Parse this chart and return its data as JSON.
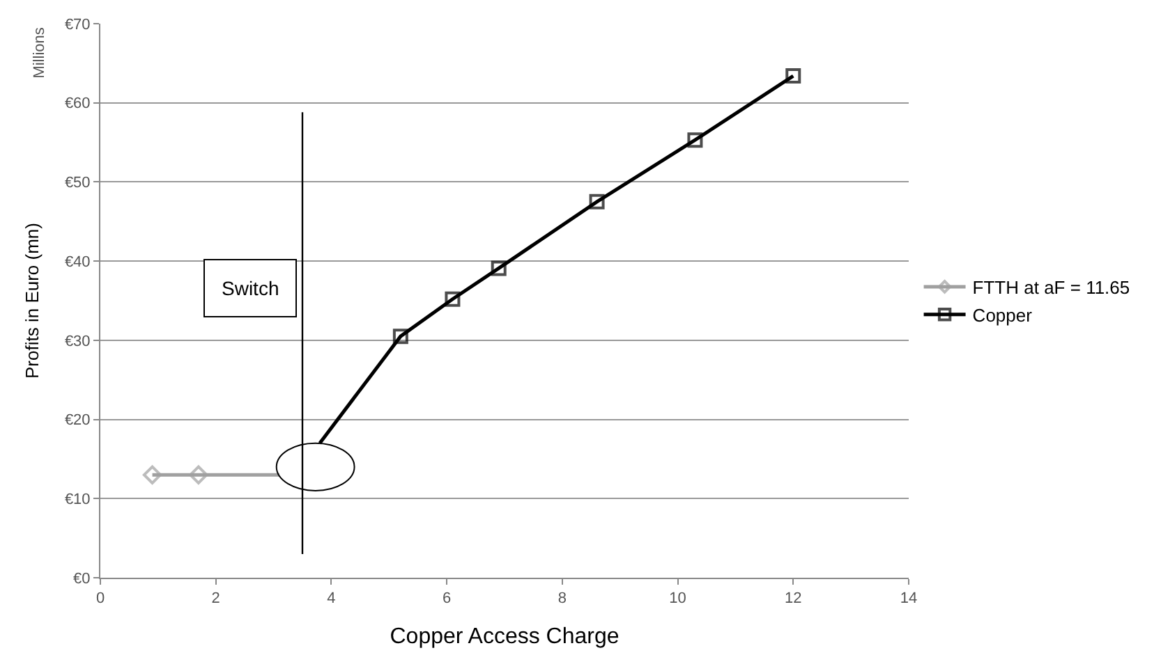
{
  "chart_data": {
    "type": "line",
    "xlabel": "Copper Access Charge",
    "ylabel": "Profits in Euro (mn)",
    "annotations": [
      "Millions"
    ],
    "xlim": [
      0,
      14
    ],
    "xticks": [
      0,
      2,
      4,
      6,
      8,
      10,
      12,
      14
    ],
    "ylim": [
      0,
      70
    ],
    "yticks": [
      {
        "value": 0,
        "label": "€0"
      },
      {
        "value": 10,
        "label": "€10"
      },
      {
        "value": 20,
        "label": "€20"
      },
      {
        "value": 30,
        "label": "€30"
      },
      {
        "value": 40,
        "label": "€40"
      },
      {
        "value": 50,
        "label": "€50"
      },
      {
        "value": 60,
        "label": "€60"
      },
      {
        "value": 70,
        "label": "€70"
      }
    ],
    "grid": "y",
    "legend": "right",
    "ref_lines": [
      {
        "axis": "x",
        "value": 3.5,
        "label": "Switch",
        "color": "#000000"
      }
    ],
    "series": [
      {
        "name": "FTTH at aF = 11.65",
        "color": "#a0a0a0",
        "marker": "diamond",
        "x": [
          0.9,
          1.7,
          3.1
        ],
        "values": [
          13,
          13,
          13
        ]
      },
      {
        "name": "Copper",
        "color": "#000000",
        "marker": "square",
        "x": [
          3.8,
          5.2,
          6.1,
          6.9,
          8.6,
          10.3,
          12
        ],
        "values": [
          17,
          30.5,
          35.2,
          39.1,
          47.5,
          55.3,
          63.4
        ]
      }
    ]
  }
}
